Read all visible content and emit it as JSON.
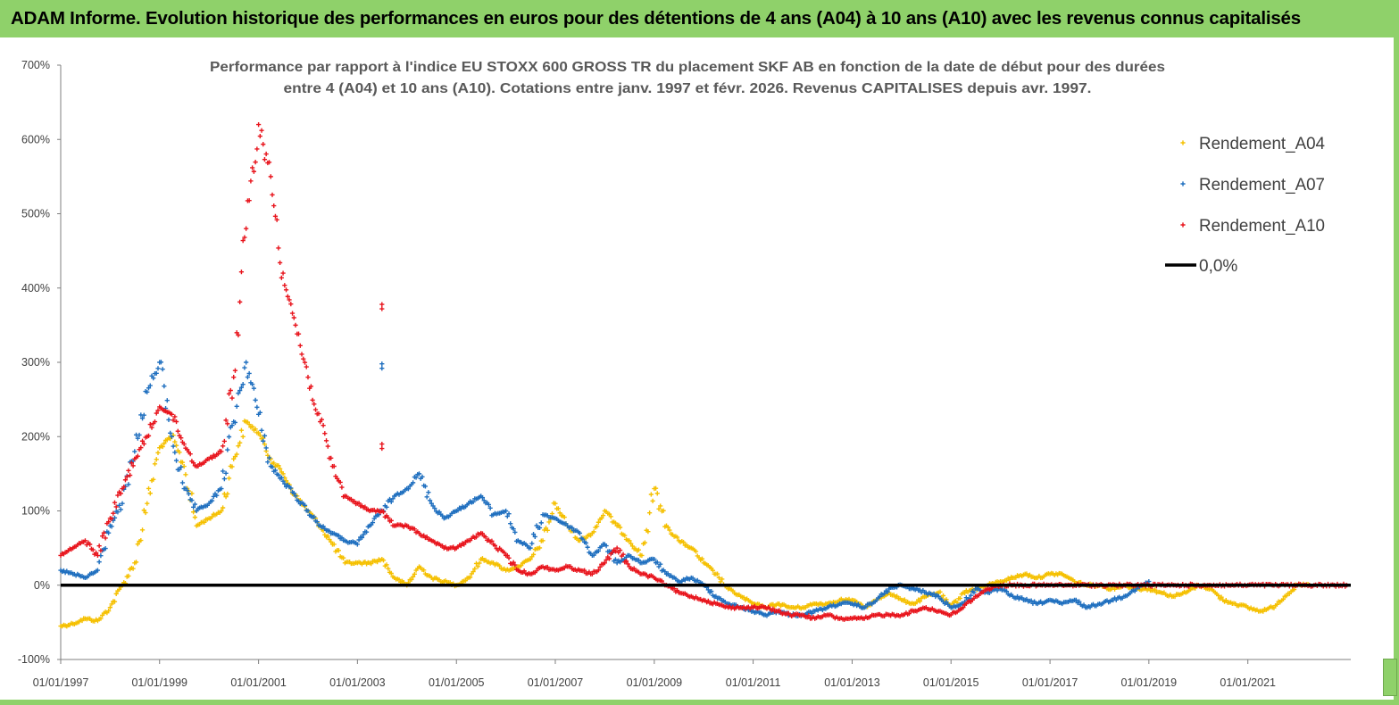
{
  "banner": {
    "title": "ADAM Informe. Evolution historique des performances en euros pour des détentions de 4 ans (A04) à 10 ans (A10) avec les revenus connus capitalisés"
  },
  "colors": {
    "banner": "#8fd16a",
    "A04": "#f5c000",
    "A07": "#1f6fbf",
    "A10": "#e8141c",
    "zero": "#000000"
  },
  "chart_data": {
    "type": "scatter",
    "title": [
      "Performance par rapport à l'indice EU STOXX 600 GROSS TR  du placement SKF AB en fonction de la date de début pour des durées",
      "entre 4 (A04) et 10 ans (A10). Cotations entre janv. 1997 et févr. 2026. Revenus CAPITALISES depuis avr. 1997."
    ],
    "xlabel": "",
    "ylabel": "",
    "x_ticks": [
      "01/01/1997",
      "01/01/1999",
      "01/01/2001",
      "01/01/2003",
      "01/01/2005",
      "01/01/2007",
      "01/01/2009",
      "01/01/2011",
      "01/01/2013",
      "01/01/2015",
      "01/01/2017",
      "01/01/2019",
      "01/01/2021"
    ],
    "xlim": [
      "1997-01-01",
      "2023-01-31"
    ],
    "y_ticks": [
      "-100%",
      "0%",
      "100%",
      "200%",
      "300%",
      "400%",
      "500%",
      "600%",
      "700%"
    ],
    "ylim": [
      -100,
      700
    ],
    "grid": false,
    "legend": "top-right",
    "zero_line_label": "0,0%",
    "series": [
      {
        "name": "Rendement_A04",
        "color": "#f5c000",
        "x": [
          "1997-01",
          "1997-04",
          "1997-07",
          "1997-10",
          "1998-01",
          "1998-04",
          "1998-07",
          "1998-10",
          "1999-01",
          "1999-04",
          "1999-07",
          "1999-10",
          "2000-01",
          "2000-04",
          "2000-07",
          "2000-10",
          "2001-01",
          "2001-04",
          "2001-07",
          "2001-10",
          "2002-01",
          "2002-04",
          "2002-07",
          "2002-10",
          "2003-01",
          "2003-04",
          "2003-07",
          "2003-10",
          "2004-01",
          "2004-04",
          "2004-07",
          "2004-10",
          "2005-01",
          "2005-04",
          "2005-07",
          "2005-10",
          "2006-01",
          "2006-04",
          "2006-07",
          "2006-10",
          "2007-01",
          "2007-04",
          "2007-07",
          "2007-10",
          "2008-01",
          "2008-04",
          "2008-07",
          "2008-10",
          "2009-01",
          "2009-04",
          "2009-07",
          "2009-10",
          "2010-01",
          "2010-04",
          "2010-07",
          "2010-10",
          "2011-01",
          "2011-04",
          "2011-07",
          "2011-10",
          "2012-01",
          "2012-04",
          "2012-07",
          "2012-10",
          "2013-01",
          "2013-04",
          "2013-07",
          "2013-10",
          "2014-01",
          "2014-04",
          "2014-07",
          "2014-10",
          "2015-01",
          "2015-04",
          "2015-07",
          "2015-10",
          "2016-01",
          "2016-04",
          "2016-07",
          "2016-10",
          "2017-01",
          "2017-04",
          "2017-07",
          "2017-10",
          "2018-01",
          "2018-04",
          "2018-07",
          "2018-10",
          "2019-01",
          "2019-04",
          "2019-07",
          "2019-10",
          "2020-01",
          "2020-04",
          "2020-07",
          "2020-10",
          "2021-01",
          "2021-04",
          "2021-07",
          "2021-10",
          "2022-01",
          "2022-04"
        ],
        "y": [
          -55,
          -52,
          -45,
          -48,
          -30,
          0,
          30,
          110,
          185,
          200,
          160,
          80,
          90,
          100,
          170,
          220,
          205,
          170,
          150,
          120,
          100,
          80,
          55,
          30,
          30,
          30,
          35,
          10,
          0,
          25,
          10,
          5,
          0,
          10,
          35,
          30,
          20,
          25,
          35,
          60,
          110,
          80,
          60,
          70,
          100,
          80,
          60,
          40,
          130,
          80,
          60,
          50,
          30,
          15,
          -5,
          -15,
          -25,
          -30,
          -25,
          -30,
          -30,
          -25,
          -25,
          -20,
          -20,
          -30,
          -20,
          -10,
          -20,
          -25,
          -15,
          -10,
          -30,
          -10,
          -5,
          0,
          5,
          10,
          15,
          10,
          15,
          15,
          5,
          0,
          0,
          -5,
          0,
          -5,
          -5,
          -10,
          -15,
          -10,
          0,
          -5,
          -20,
          -25,
          -30,
          -35,
          -30,
          -15,
          0,
          0
        ]
      },
      {
        "name": "Rendement_A07",
        "color": "#1f6fbf",
        "x": [
          "1997-01",
          "1997-04",
          "1997-07",
          "1997-10",
          "1998-01",
          "1998-04",
          "1998-07",
          "1998-10",
          "1999-01",
          "1999-04",
          "1999-07",
          "1999-10",
          "2000-01",
          "2000-04",
          "2000-07",
          "2000-10",
          "2001-01",
          "2001-04",
          "2001-07",
          "2001-10",
          "2002-01",
          "2002-04",
          "2002-07",
          "2002-10",
          "2003-01",
          "2003-04",
          "2003-07",
          "2003-10",
          "2004-01",
          "2004-04",
          "2004-07",
          "2004-10",
          "2005-01",
          "2005-04",
          "2005-07",
          "2005-10",
          "2006-01",
          "2006-04",
          "2006-07",
          "2006-10",
          "2007-01",
          "2007-04",
          "2007-07",
          "2007-10",
          "2008-01",
          "2008-04",
          "2008-07",
          "2008-10",
          "2009-01",
          "2009-04",
          "2009-07",
          "2009-10",
          "2010-01",
          "2010-04",
          "2010-07",
          "2010-10",
          "2011-01",
          "2011-04",
          "2011-07",
          "2011-10",
          "2012-01",
          "2012-04",
          "2012-07",
          "2012-10",
          "2013-01",
          "2013-04",
          "2013-07",
          "2013-10",
          "2014-01",
          "2014-04",
          "2014-07",
          "2014-10",
          "2015-01",
          "2015-04",
          "2015-07",
          "2015-10",
          "2016-01",
          "2016-04",
          "2016-07",
          "2016-10",
          "2017-01",
          "2017-04",
          "2017-07",
          "2017-10",
          "2018-01",
          "2018-04",
          "2018-07",
          "2018-10",
          "2019-01"
        ],
        "y": [
          20,
          15,
          10,
          20,
          80,
          110,
          180,
          260,
          300,
          200,
          130,
          100,
          110,
          130,
          220,
          300,
          230,
          160,
          140,
          120,
          100,
          80,
          70,
          60,
          55,
          80,
          100,
          120,
          130,
          150,
          110,
          90,
          100,
          110,
          120,
          95,
          100,
          60,
          50,
          95,
          90,
          80,
          70,
          40,
          55,
          30,
          40,
          30,
          35,
          15,
          5,
          10,
          0,
          -15,
          -25,
          -30,
          -35,
          -40,
          -35,
          -40,
          -40,
          -35,
          -30,
          -25,
          -25,
          -30,
          -20,
          -5,
          0,
          -5,
          -10,
          -15,
          -30,
          -25,
          -5,
          -10,
          -5,
          -15,
          -20,
          -25,
          -20,
          -25,
          -20,
          -30,
          -25,
          -20,
          -15,
          -5,
          5
        ]
      },
      {
        "name": "Rendement_A10",
        "color": "#e8141c",
        "x": [
          "1997-01",
          "1997-04",
          "1997-07",
          "1997-10",
          "1998-01",
          "1998-04",
          "1998-07",
          "1998-10",
          "1999-01",
          "1999-04",
          "1999-07",
          "1999-10",
          "2000-01",
          "2000-04",
          "2000-07",
          "2000-10",
          "2001-01",
          "2001-04",
          "2001-07",
          "2001-10",
          "2002-01",
          "2002-04",
          "2002-07",
          "2002-10",
          "2003-01",
          "2003-04",
          "2003-07",
          "2003-10",
          "2004-01",
          "2004-04",
          "2004-07",
          "2004-10",
          "2005-01",
          "2005-04",
          "2005-07",
          "2005-10",
          "2006-01",
          "2006-04",
          "2006-07",
          "2006-10",
          "2007-01",
          "2007-04",
          "2007-07",
          "2007-10",
          "2008-01",
          "2008-04",
          "2008-07",
          "2008-10",
          "2009-01",
          "2009-04",
          "2009-07",
          "2009-10",
          "2010-01",
          "2010-04",
          "2010-07",
          "2010-10",
          "2011-01",
          "2011-04",
          "2011-07",
          "2011-10",
          "2012-01",
          "2012-04",
          "2012-07",
          "2012-10",
          "2013-01",
          "2013-04",
          "2013-07",
          "2013-10",
          "2014-01",
          "2014-04",
          "2014-07",
          "2014-10",
          "2015-01",
          "2015-04",
          "2015-07",
          "2015-10",
          "2016-01",
          "2016-04",
          "2016-07",
          "2016-10",
          "2017-01",
          "2017-04",
          "2017-07",
          "2017-10",
          "2018-01",
          "2018-04",
          "2018-07",
          "2018-10",
          "2019-01",
          "2019-04",
          "2019-07",
          "2019-10",
          "2020-01",
          "2020-04",
          "2020-07",
          "2020-10",
          "2021-01",
          "2021-04",
          "2021-07",
          "2021-10",
          "2022-01",
          "2022-04",
          "2022-07",
          "2022-10",
          "2023-01"
        ],
        "y": [
          40,
          50,
          60,
          40,
          90,
          130,
          170,
          200,
          240,
          230,
          190,
          160,
          170,
          180,
          280,
          480,
          620,
          550,
          420,
          350,
          280,
          220,
          160,
          120,
          110,
          100,
          100,
          80,
          80,
          70,
          60,
          50,
          50,
          60,
          70,
          55,
          40,
          20,
          15,
          25,
          20,
          25,
          20,
          15,
          30,
          50,
          25,
          15,
          10,
          0,
          -10,
          -15,
          -20,
          -25,
          -30,
          -30,
          -30,
          -30,
          -35,
          -40,
          -40,
          -45,
          -40,
          -45,
          -45,
          -45,
          -40,
          -40,
          -40,
          -35,
          -30,
          -35,
          -40,
          -30,
          -15,
          -5,
          0,
          0,
          0,
          0,
          0,
          0,
          0,
          0,
          0,
          0,
          0,
          0,
          0,
          0,
          0,
          0,
          0,
          0,
          0,
          0,
          0,
          0,
          0,
          0,
          0,
          0,
          0,
          0,
          0
        ]
      }
    ],
    "outliers": [
      {
        "series": "Rendement_A10",
        "x": "2003-07",
        "y": 378
      },
      {
        "series": "Rendement_A10",
        "x": "2003-07",
        "y": 190
      },
      {
        "series": "Rendement_A07",
        "x": "2003-07",
        "y": 298
      }
    ]
  }
}
